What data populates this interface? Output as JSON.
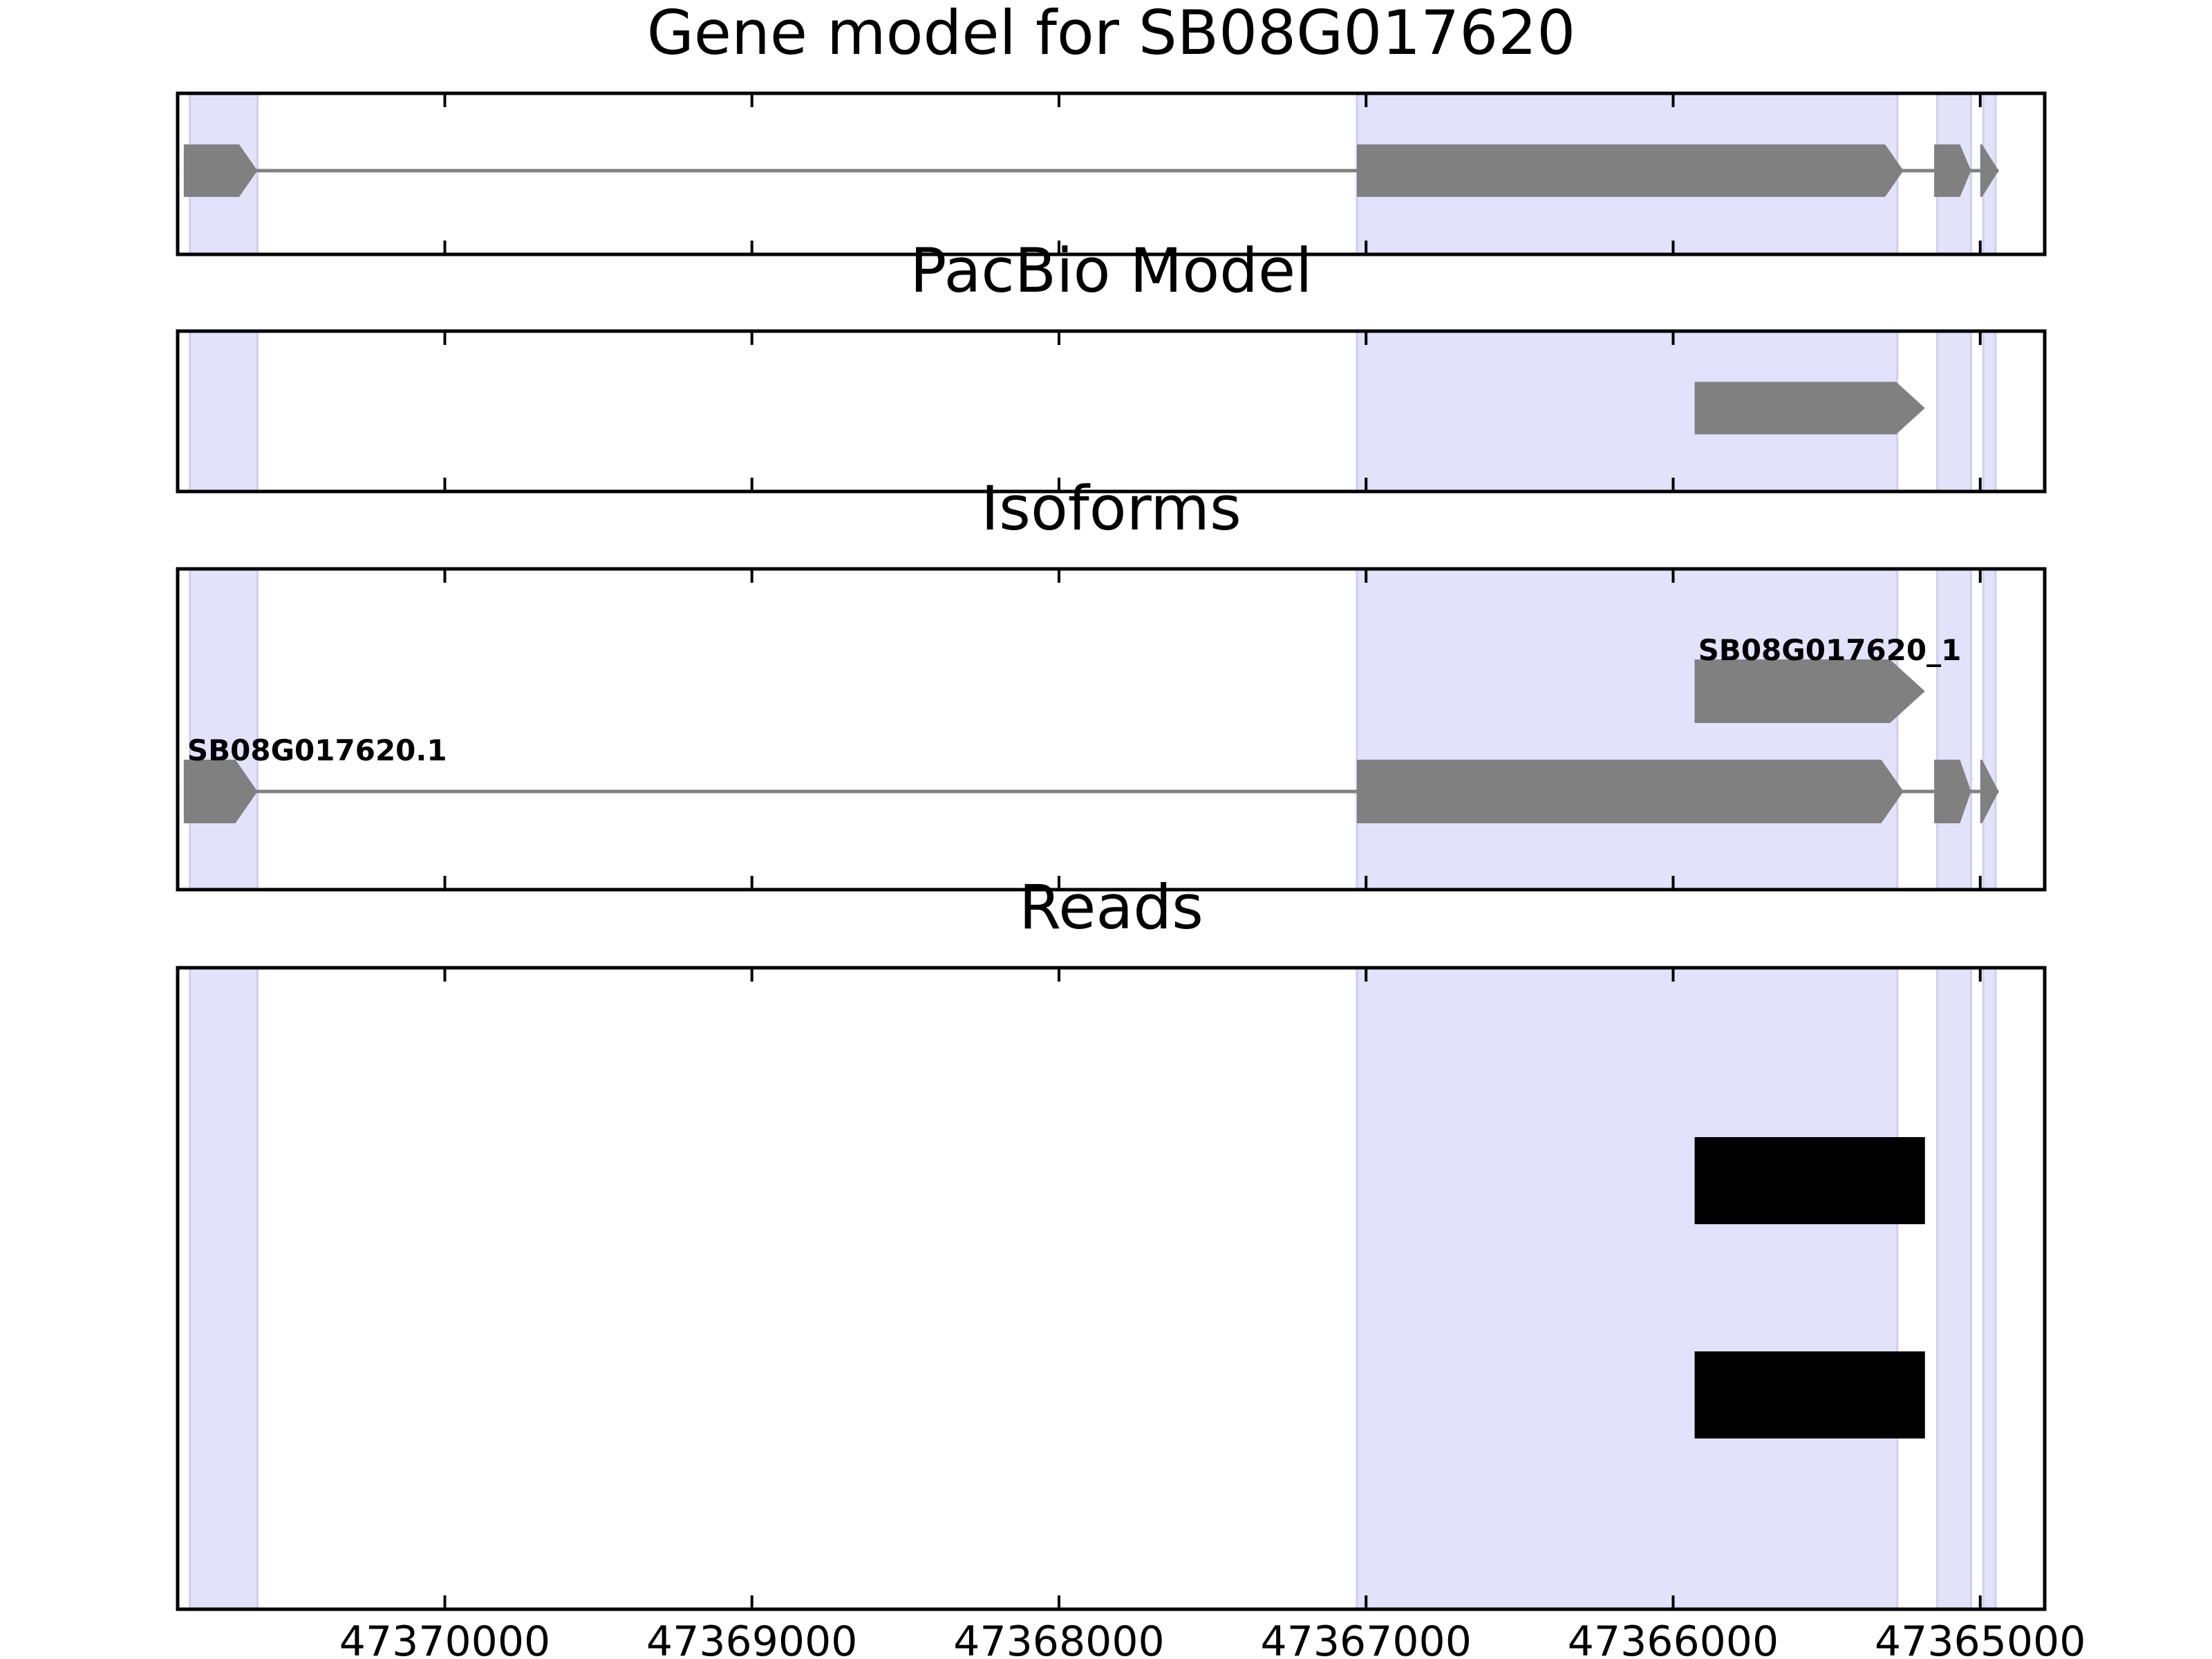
{
  "chart_data": {
    "type": "gene-model-track",
    "x_axis": {
      "reversed": true,
      "range": [
        47370870,
        47364790
      ],
      "ticks": [
        47370000,
        47369000,
        47368000,
        47367000,
        47366000,
        47365000
      ],
      "tick_labels": [
        "47370000",
        "47369000",
        "47368000",
        "47367000",
        "47366000",
        "47365000"
      ]
    },
    "exon_highlights": [
      [
        47370830,
        47370610
      ],
      [
        47367030,
        47365270
      ],
      [
        47365140,
        47365030
      ],
      [
        47364990,
        47364950
      ]
    ],
    "panels": [
      {
        "title": "Gene model for SB08G017620",
        "kind": "gene",
        "features": [
          {
            "label": "",
            "strand": "-",
            "exons": [
              [
                47370850,
                47370610
              ],
              [
                47367030,
                47365250
              ],
              [
                47365150,
                47365030
              ],
              [
                47365000,
                47364940
              ]
            ]
          }
        ]
      },
      {
        "title": "PacBio Model",
        "kind": "gene",
        "features": [
          {
            "label": "",
            "strand": "-",
            "exons": [
              [
                47365930,
                47365180
              ]
            ]
          }
        ]
      },
      {
        "title": "Isoforms",
        "kind": "isoforms",
        "features": [
          {
            "label": "SB08G017620_1",
            "strand": "-",
            "exons": [
              [
                47365930,
                47365180
              ]
            ]
          },
          {
            "label": "SB08G017620.1",
            "strand": "-",
            "exons": [
              [
                47370850,
                47370610
              ],
              [
                47367030,
                47365250
              ],
              [
                47365150,
                47365030
              ],
              [
                47365000,
                47364940
              ]
            ]
          }
        ]
      },
      {
        "title": "Reads",
        "kind": "reads",
        "features": [
          {
            "label": "",
            "exons": [
              [
                47365930,
                47365180
              ]
            ]
          },
          {
            "label": "",
            "exons": [
              [
                47365930,
                47365180
              ]
            ]
          }
        ]
      }
    ]
  }
}
